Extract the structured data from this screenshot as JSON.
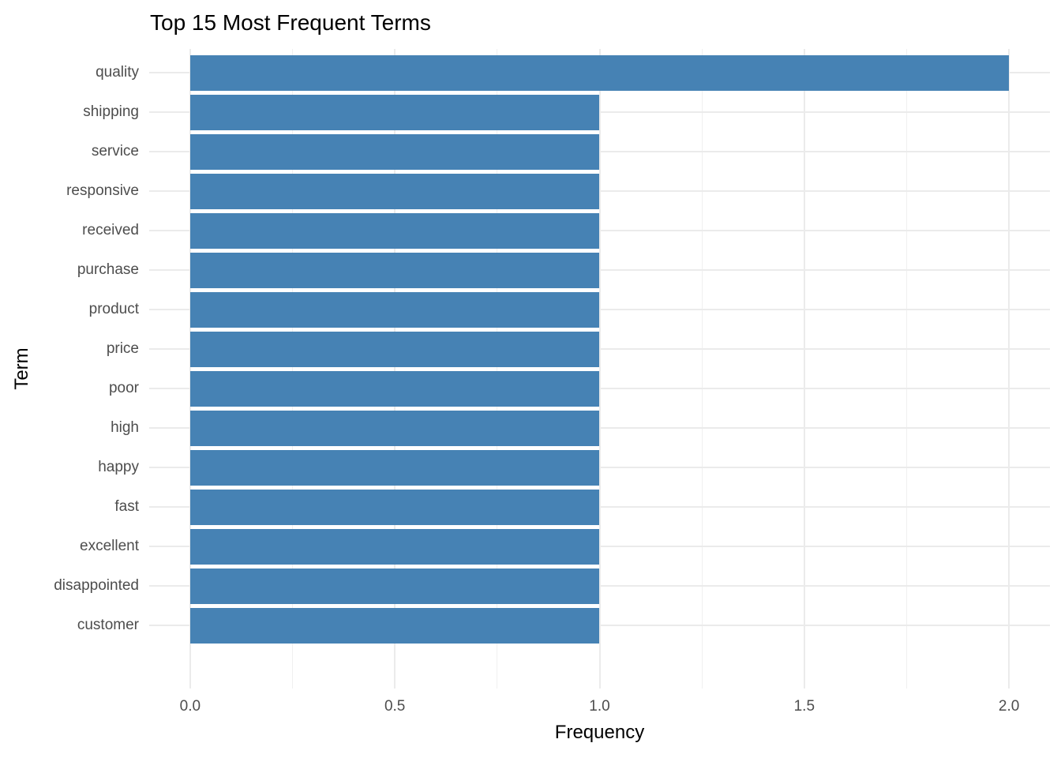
{
  "chart_data": {
    "type": "bar",
    "orientation": "horizontal",
    "title": "Top 15 Most Frequent Terms",
    "xlabel": "Frequency",
    "ylabel": "Term",
    "categories": [
      "quality",
      "shipping",
      "service",
      "responsive",
      "received",
      "purchase",
      "product",
      "price",
      "poor",
      "high",
      "happy",
      "fast",
      "excellent",
      "disappointed",
      "customer"
    ],
    "values": [
      2,
      1,
      1,
      1,
      1,
      1,
      1,
      1,
      1,
      1,
      1,
      1,
      1,
      1,
      1
    ],
    "xlim": [
      -0.1,
      2.1
    ],
    "x_tick_values": [
      0,
      0.5,
      1,
      1.5,
      2
    ],
    "x_tick_labels": [
      "0.0",
      "0.5",
      "1.0",
      "1.5",
      "2.0"
    ],
    "x_minor_tick_values": [
      0.25,
      0.75,
      1.25,
      1.75
    ],
    "bar_width_fraction": 0.9,
    "grid": "major-and-minor-vertical, major-horizontal",
    "legend": "none",
    "colors": {
      "bar": "#4682B4",
      "grid_major": "#EBEBEB",
      "grid_minor": "#F0F0F0",
      "tick_text": "#4D4D4D",
      "title_text": "#000000",
      "background": "#FFFFFF"
    }
  }
}
